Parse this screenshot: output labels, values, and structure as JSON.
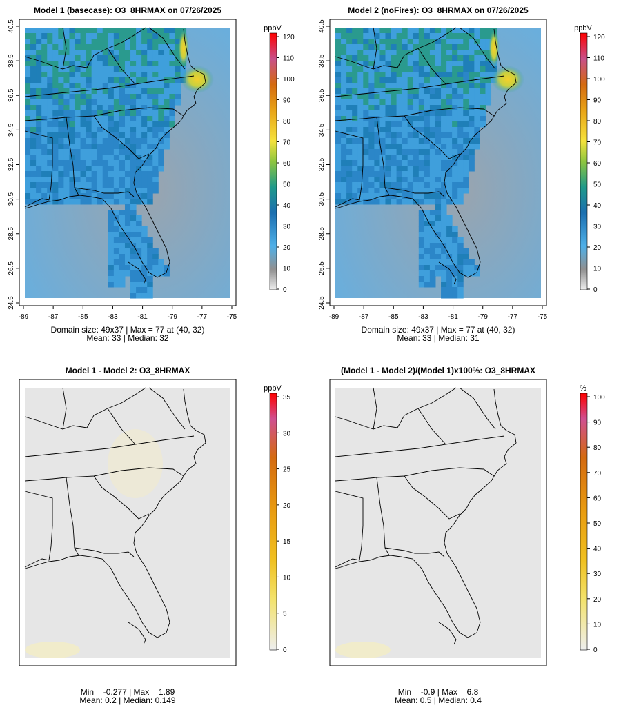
{
  "panels": [
    {
      "title": "Model 1 (basecase): O3_8HRMAX on 07/26/2025",
      "unit": "ppbV",
      "scale_ticks": [
        "0",
        "10",
        "20",
        "30",
        "40",
        "50",
        "60",
        "70",
        "80",
        "90",
        "100",
        "110",
        "120"
      ],
      "scale_max": 120,
      "kind": "absolute",
      "lat_ticks": [
        "24.5",
        "26.5",
        "28.5",
        "30.5",
        "32.5",
        "34.5",
        "36.5",
        "38.5",
        "40.5"
      ],
      "lon_ticks": [
        "-89",
        "-87",
        "-85",
        "-83",
        "-81",
        "-79",
        "-77",
        "-75"
      ],
      "stats_line1": "Domain size: 49x37 | Max = 77 at (40, 32)",
      "stats_line2": "Mean: 33 |  Median: 32"
    },
    {
      "title": "Model 2 (noFires): O3_8HRMAX on 07/26/2025",
      "unit": "ppbV",
      "scale_ticks": [
        "0",
        "10",
        "20",
        "30",
        "40",
        "50",
        "60",
        "70",
        "80",
        "90",
        "100",
        "110",
        "120"
      ],
      "scale_max": 120,
      "kind": "absolute",
      "lat_ticks": [
        "24.5",
        "26.5",
        "28.5",
        "30.5",
        "32.5",
        "34.5",
        "36.5",
        "38.5",
        "40.5"
      ],
      "lon_ticks": [
        "-89",
        "-87",
        "-85",
        "-83",
        "-81",
        "-79",
        "-77",
        "-75"
      ],
      "stats_line1": "Domain size: 49x37 | Max = 77 at (40, 32)",
      "stats_line2": "Mean: 33 |  Median: 31"
    },
    {
      "title": "Model 1 - Model 2: O3_8HRMAX",
      "unit": "ppbV",
      "scale_ticks": [
        "0",
        "5",
        "10",
        "15",
        "20",
        "25",
        "30",
        "35"
      ],
      "scale_max": 35,
      "kind": "diff",
      "stats_line1": "Min = -0.277 | Max = 1.89",
      "stats_line2": "Mean: 0.2 |  Median: 0.149"
    },
    {
      "title": "(Model 1 - Model 2)/(Model 1)x100%: O3_8HRMAX",
      "unit": "%",
      "scale_ticks": [
        "0",
        "10",
        "20",
        "30",
        "40",
        "50",
        "60",
        "70",
        "80",
        "90",
        "100"
      ],
      "scale_max": 100,
      "kind": "pct",
      "stats_line1": "Min = -0.9 | Max = 6.8",
      "stats_line2": "Mean: 0.5 |  Median: 0.4"
    }
  ],
  "colors": {
    "scale_stops": [
      "#eeeeee",
      "#909090",
      "#4fb0e8",
      "#1c6fb0",
      "#1f9a8a",
      "#8ec63f",
      "#f5e23c",
      "#e8a317",
      "#d46a10",
      "#c8508a",
      "#ff0000"
    ],
    "map_fill_diff": "#e6e6e6",
    "line": "#000000"
  }
}
